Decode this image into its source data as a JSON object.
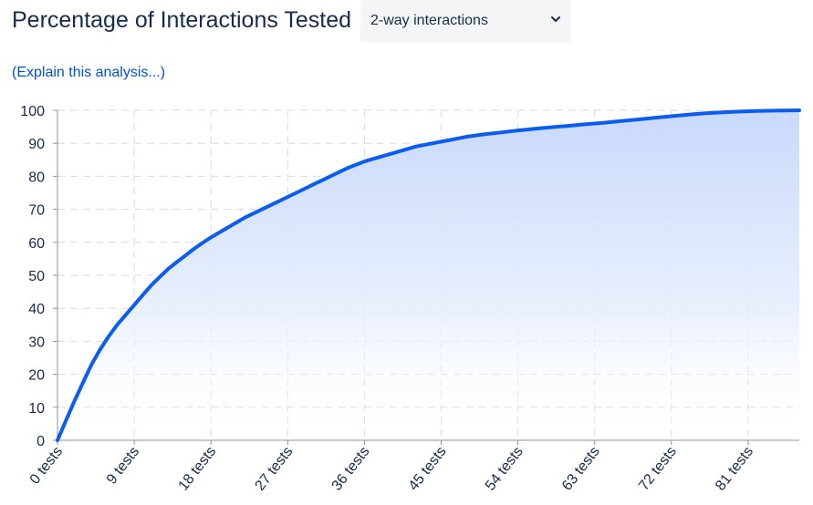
{
  "header": {
    "title": "Percentage of Interactions Tested",
    "interaction_select": {
      "selected": "2-way interactions"
    },
    "explain_link": "(Explain this analysis...)"
  },
  "colors": {
    "line": "#0b5cf0",
    "fill_top": "#c9d9fb",
    "grid": "#d6dae3",
    "axis": "#8993a4",
    "link": "#0052cc"
  },
  "chart_data": {
    "type": "area",
    "xlim": [
      0,
      87
    ],
    "ylim": [
      0,
      100
    ],
    "yticks": [
      0,
      10,
      20,
      30,
      40,
      50,
      60,
      70,
      80,
      90,
      100
    ],
    "xticks": [
      0,
      9,
      18,
      27,
      36,
      45,
      54,
      63,
      72,
      81
    ],
    "xtick_labels": [
      "0 tests",
      "9 tests",
      "18 tests",
      "27 tests",
      "36 tests",
      "45 tests",
      "54 tests",
      "63 tests",
      "72 tests",
      "81 tests"
    ],
    "grid": true,
    "series": [
      {
        "x": [
          0,
          1,
          2,
          3,
          4,
          5,
          6,
          7,
          8,
          9,
          10,
          11,
          12,
          13,
          14,
          15,
          16,
          17,
          18,
          20,
          22,
          24,
          26,
          28,
          30,
          32,
          34,
          36,
          38,
          40,
          42,
          44,
          46,
          48,
          50,
          52,
          54,
          56,
          58,
          60,
          62,
          64,
          66,
          68,
          70,
          72,
          74,
          76,
          78,
          80,
          82,
          84,
          87
        ],
        "y": [
          0,
          6,
          12,
          17.5,
          23,
          27.5,
          31.5,
          35,
          38,
          41,
          44,
          47,
          49.5,
          52,
          54,
          56,
          58,
          59.8,
          61.5,
          64.5,
          67.5,
          70,
          72.5,
          75,
          77.5,
          80,
          82.5,
          84.5,
          86,
          87.5,
          89,
          90,
          91,
          92,
          92.7,
          93.3,
          93.9,
          94.4,
          94.9,
          95.3,
          95.8,
          96.2,
          96.7,
          97.2,
          97.7,
          98.2,
          98.7,
          99.1,
          99.4,
          99.6,
          99.8,
          99.9,
          100
        ]
      }
    ]
  }
}
